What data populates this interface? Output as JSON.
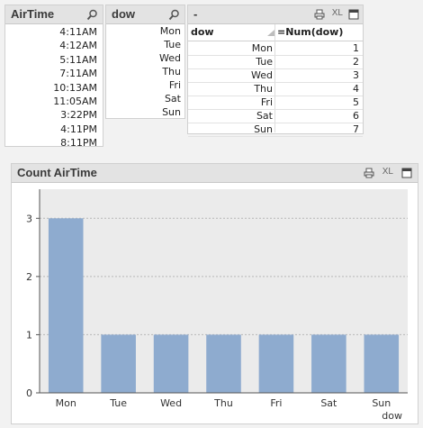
{
  "airtime_listbox": {
    "title": "AirTime",
    "items": [
      "4:11AM",
      "4:12AM",
      "5:11AM",
      "7:11AM",
      "10:13AM",
      "11:05AM",
      "3:22PM",
      "4:11PM",
      "8:11PM"
    ]
  },
  "dow_listbox": {
    "title": "dow",
    "items": [
      "Mon",
      "Tue",
      "Wed",
      "Thu",
      "Fri",
      "Sat",
      "Sun"
    ]
  },
  "table": {
    "title": "-",
    "xl_label": "XL",
    "col1_header": "dow",
    "col2_header": "=Num(dow)",
    "rows": [
      {
        "dow": "Mon",
        "num": "1"
      },
      {
        "dow": "Tue",
        "num": "2"
      },
      {
        "dow": "Wed",
        "num": "3"
      },
      {
        "dow": "Thu",
        "num": "4"
      },
      {
        "dow": "Fri",
        "num": "5"
      },
      {
        "dow": "Sat",
        "num": "6"
      },
      {
        "dow": "Sun",
        "num": "7"
      }
    ]
  },
  "chart": {
    "title": "Count AirTime",
    "xl_label": "XL"
  },
  "chart_data": {
    "type": "bar",
    "title": "Count AirTime",
    "xlabel": "dow",
    "ylabel": "",
    "categories": [
      "Mon",
      "Tue",
      "Wed",
      "Thu",
      "Fri",
      "Sat",
      "Sun"
    ],
    "values": [
      3,
      1,
      1,
      1,
      1,
      1,
      1
    ],
    "ylim": [
      0,
      3.5
    ],
    "yticks": [
      "0",
      "1",
      "2",
      "3"
    ],
    "grid": true,
    "bar_color": "#8eabcf",
    "plot_bg": "#ebebeb"
  }
}
